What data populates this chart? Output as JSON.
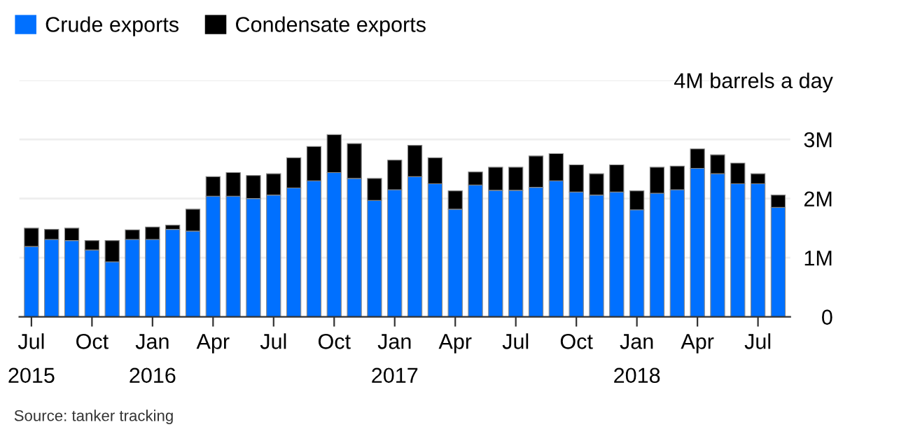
{
  "chart_data": {
    "type": "bar",
    "stacked": true,
    "categories": [
      "Jul\n2015",
      null,
      null,
      "Oct",
      null,
      null,
      "Jan\n2016",
      null,
      null,
      "Apr",
      null,
      null,
      "Jul",
      null,
      null,
      "Oct",
      null,
      null,
      "Jan\n2017",
      null,
      null,
      "Apr",
      null,
      null,
      "Jul",
      null,
      null,
      "Oct",
      null,
      null,
      "Jan\n2018",
      null,
      null,
      "Apr",
      null,
      null,
      "Jul",
      null
    ],
    "series": [
      {
        "name": "Crude exports",
        "color": "#0070ff",
        "values": [
          1.19,
          1.31,
          1.29,
          1.13,
          0.93,
          1.31,
          1.31,
          1.48,
          1.45,
          2.04,
          2.04,
          2.0,
          2.06,
          2.18,
          2.3,
          2.44,
          2.34,
          1.97,
          2.15,
          2.37,
          2.25,
          1.82,
          2.23,
          2.14,
          2.14,
          2.19,
          2.3,
          2.11,
          2.06,
          2.11,
          1.81,
          2.09,
          2.15,
          2.51,
          2.42,
          2.25,
          2.25,
          1.85
        ]
      },
      {
        "name": "Condensate exports",
        "color": "#000000",
        "values": [
          0.31,
          0.17,
          0.21,
          0.16,
          0.36,
          0.16,
          0.21,
          0.07,
          0.37,
          0.33,
          0.4,
          0.39,
          0.36,
          0.51,
          0.58,
          0.64,
          0.59,
          0.37,
          0.5,
          0.53,
          0.44,
          0.31,
          0.22,
          0.39,
          0.39,
          0.53,
          0.46,
          0.46,
          0.36,
          0.46,
          0.32,
          0.44,
          0.4,
          0.33,
          0.32,
          0.35,
          0.17,
          0.21
        ]
      }
    ],
    "ylim": [
      0,
      4
    ],
    "yticks": [
      0,
      {
        "value": 1,
        "label": "1M"
      },
      {
        "value": 2,
        "label": "2M"
      },
      {
        "value": 3,
        "label": "3M"
      },
      {
        "value": 4,
        "label": "4M barrels a day"
      }
    ],
    "grid": "y",
    "legend": "top left",
    "annotations": [
      "Source: tanker tracking"
    ]
  }
}
